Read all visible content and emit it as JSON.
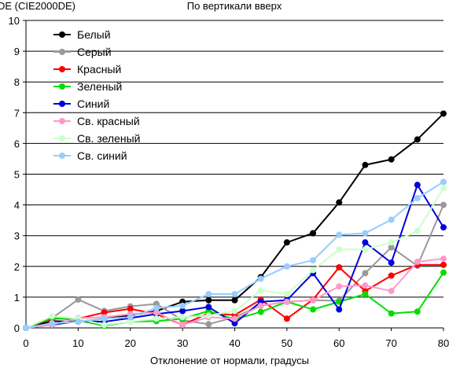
{
  "chart_data": {
    "type": "line",
    "title": "По вертикали вверх",
    "xlabel": "Отклонение от нормали, градусы",
    "ylabel": "DE (CIE2000DE)",
    "xlim": [
      0,
      80
    ],
    "ylim": [
      0,
      10
    ],
    "x_ticks": [
      0,
      10,
      20,
      30,
      40,
      50,
      60,
      70,
      80
    ],
    "y_ticks": [
      0,
      1,
      2,
      3,
      4,
      5,
      6,
      7,
      8,
      9,
      10
    ],
    "grid": "horizontal",
    "legend_position": "top-left",
    "x": [
      0,
      5,
      10,
      15,
      20,
      25,
      30,
      35,
      40,
      45,
      50,
      55,
      60,
      65,
      70,
      75,
      80
    ],
    "series": [
      {
        "name": "Белый",
        "color": "#000000",
        "values": [
          0,
          0.22,
          0.2,
          0.3,
          0.4,
          0.55,
          0.85,
          0.9,
          0.9,
          1.65,
          2.78,
          3.08,
          4.08,
          5.3,
          5.48,
          6.13,
          6.97
        ]
      },
      {
        "name": "Серый",
        "color": "#999999",
        "values": [
          0,
          0.32,
          0.92,
          0.55,
          0.7,
          0.78,
          0.25,
          0.12,
          0.35,
          0.72,
          0.85,
          0.9,
          0.88,
          1.78,
          2.62,
          2.02,
          4.0
        ]
      },
      {
        "name": "Красный",
        "color": "#ff0000",
        "values": [
          0,
          0.3,
          0.3,
          0.5,
          0.62,
          0.45,
          0.1,
          0.48,
          0.42,
          0.92,
          0.3,
          0.92,
          1.97,
          1.2,
          1.7,
          2.05,
          2.05
        ]
      },
      {
        "name": "Зеленый",
        "color": "#00dd00",
        "values": [
          0,
          0.33,
          0.25,
          0.07,
          0.2,
          0.22,
          0.3,
          0.55,
          0.28,
          0.52,
          0.85,
          0.6,
          0.85,
          1.1,
          0.47,
          0.53,
          1.8
        ]
      },
      {
        "name": "Синий",
        "color": "#0000dd",
        "values": [
          0,
          0.1,
          0.22,
          0.2,
          0.32,
          0.45,
          0.55,
          0.68,
          0.15,
          0.85,
          0.9,
          1.78,
          0.6,
          2.78,
          2.12,
          4.65,
          3.27
        ]
      },
      {
        "name": "Св. красный",
        "color": "#ff99cc",
        "values": [
          0,
          0.1,
          0.32,
          0.35,
          0.45,
          0.5,
          0.1,
          0.35,
          0.3,
          0.72,
          0.85,
          0.9,
          1.35,
          1.38,
          1.2,
          2.15,
          2.25
        ]
      },
      {
        "name": "Св. зеленый",
        "color": "#ccffcc",
        "values": [
          0,
          0.38,
          0.3,
          0.1,
          0.2,
          0.3,
          0.35,
          0.4,
          0.55,
          1.22,
          1.1,
          1.88,
          2.55,
          2.55,
          2.78,
          3.15,
          4.55
        ]
      },
      {
        "name": "Св. синий",
        "color": "#99ccff",
        "values": [
          0,
          0.15,
          0.2,
          0.3,
          0.35,
          0.65,
          0.72,
          1.1,
          1.1,
          1.6,
          2.0,
          2.2,
          3.03,
          3.08,
          3.52,
          4.22,
          4.75
        ]
      }
    ]
  }
}
